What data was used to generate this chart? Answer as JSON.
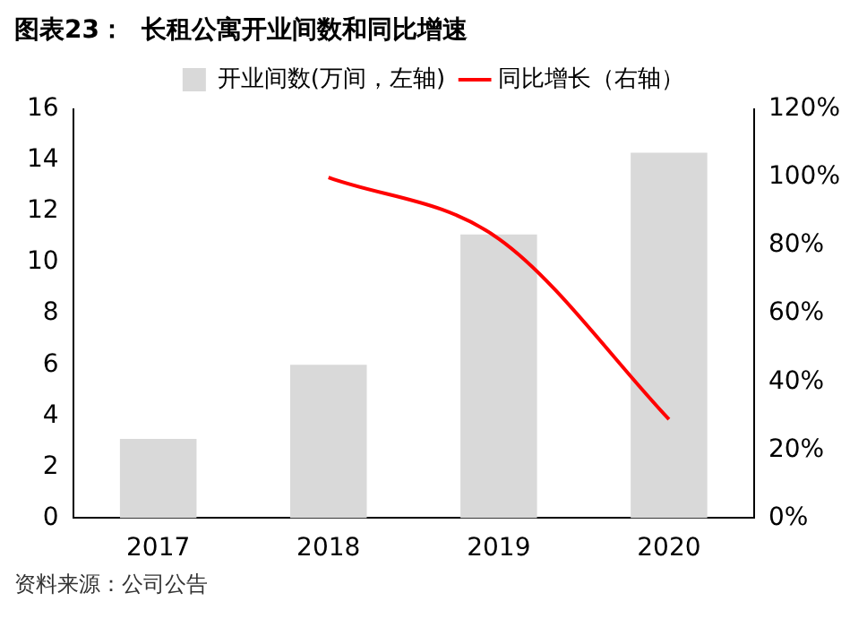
{
  "chart_data": {
    "type": "bar",
    "title": "图表23：  长租公寓开业间数和同比增速",
    "categories": [
      "2017",
      "2018",
      "2019",
      "2020"
    ],
    "series": [
      {
        "name": "开业间数(万间，左轴)",
        "color": "#d9d9d9",
        "values": [
          3.1,
          6.0,
          11.1,
          14.3
        ]
      },
      {
        "name": "同比增长（右轴）",
        "type": "line",
        "axis": "y2",
        "color": "#ff0000",
        "marker": "none",
        "values": [
          null,
          100,
          82,
          29
        ]
      }
    ],
    "ylim": [
      0,
      16
    ],
    "yticks": [
      0,
      2,
      4,
      6,
      8,
      10,
      12,
      14,
      16
    ],
    "y2lim": [
      0,
      120
    ],
    "y2ticks": [
      {
        "value": 0,
        "label": "0%"
      },
      {
        "value": 20,
        "label": "20%"
      },
      {
        "value": 40,
        "label": "40%"
      },
      {
        "value": 60,
        "label": "60%"
      },
      {
        "value": 80,
        "label": "80%"
      },
      {
        "value": 100,
        "label": "100%"
      },
      {
        "value": 120,
        "label": "120%"
      }
    ],
    "grid": false,
    "legend": "top",
    "annotations": [
      "资料来源：公司公告"
    ]
  }
}
